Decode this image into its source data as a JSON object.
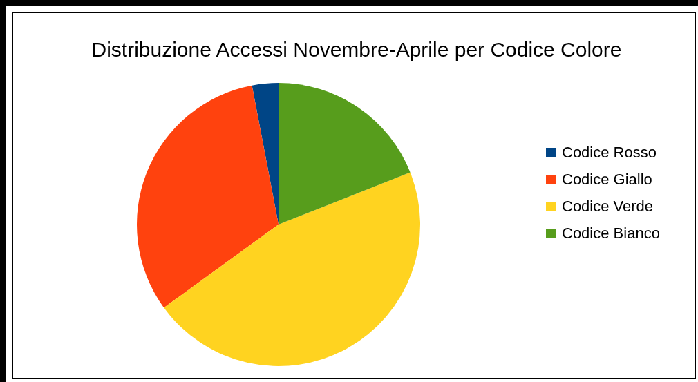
{
  "chart_data": {
    "type": "pie",
    "title": "Distribuzione Accessi Novembre-Aprile per Codice Colore",
    "categories": [
      "Codice Rosso",
      "Codice Giallo",
      "Codice Verde",
      "Codice Bianco"
    ],
    "values": [
      3,
      32,
      46,
      19
    ],
    "colors": [
      "#004586",
      "#ff420e",
      "#ffd320",
      "#579d1c"
    ],
    "legend": "right"
  }
}
